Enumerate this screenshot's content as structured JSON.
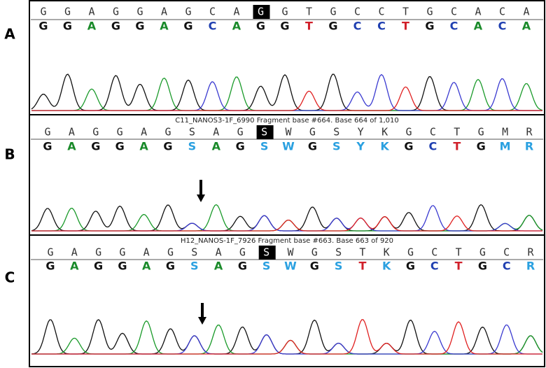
{
  "panels": [
    {
      "label": "A",
      "called": [
        "G",
        "G",
        "A",
        "G",
        "G",
        "A",
        "G",
        "C",
        "A",
        "G",
        "G",
        "T",
        "G",
        "C",
        "C",
        "T",
        "G",
        "C",
        "A",
        "C",
        "A"
      ],
      "bases": [
        "G",
        "G",
        "A",
        "G",
        "G",
        "A",
        "G",
        "C",
        "A",
        "G",
        "G",
        "T",
        "G",
        "C",
        "C",
        "T",
        "G",
        "C",
        "A",
        "C",
        "A"
      ]
    },
    {
      "label": "B",
      "caption": "C11_NANOS3-1F_6990 Fragment base #664. Base 664 of 1,010",
      "called": [
        "G",
        "A",
        "G",
        "G",
        "A",
        "G",
        "S",
        "A",
        "G",
        "S",
        "W",
        "G",
        "S",
        "Y",
        "K",
        "G",
        "C",
        "T",
        "G",
        "M",
        "R"
      ],
      "bases": [
        "G",
        "A",
        "G",
        "G",
        "A",
        "G",
        "S",
        "A",
        "G",
        "S",
        "W",
        "G",
        "S",
        "Y",
        "K",
        "G",
        "C",
        "T",
        "G",
        "M",
        "R"
      ]
    },
    {
      "label": "C",
      "caption": "H12_NANOS-1F_7926 Fragment base #663. Base 663 of 920",
      "called": [
        "G",
        "A",
        "G",
        "G",
        "A",
        "G",
        "S",
        "A",
        "G",
        "S",
        "W",
        "G",
        "S",
        "T",
        "K",
        "G",
        "C",
        "T",
        "G",
        "C",
        "R"
      ],
      "bases": [
        "G",
        "A",
        "G",
        "G",
        "A",
        "G",
        "S",
        "A",
        "G",
        "S",
        "W",
        "G",
        "S",
        "T",
        "K",
        "G",
        "C",
        "T",
        "G",
        "C",
        "R"
      ]
    }
  ]
}
